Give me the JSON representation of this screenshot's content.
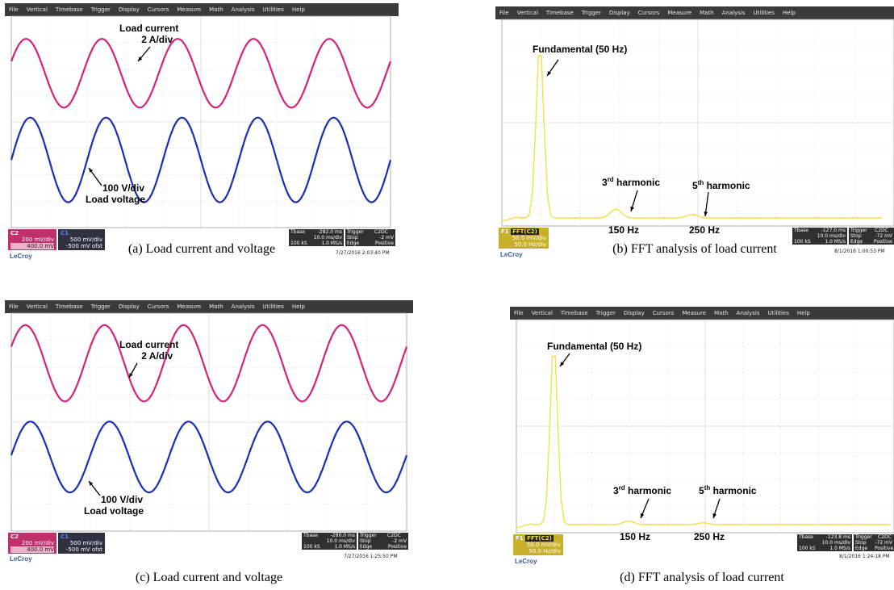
{
  "menu": [
    "File",
    "Vertical",
    "Timebase",
    "Trigger",
    "Display",
    "Cursors",
    "Measure",
    "Math",
    "Analysis",
    "Utilities",
    "Help"
  ],
  "brand": "LeCroy",
  "colors": {
    "current": "#d4237a",
    "voltage": "#1c2fb4",
    "fft": "#f2e04a",
    "menubar": "#3a3a3a",
    "grid": "#c8c8c8"
  },
  "panels": [
    {
      "caption": "(a) Load current and voltage",
      "annotations": {
        "current_label": "Load current",
        "current_scale": "2 A/div",
        "voltage_scale": "100 V/div",
        "voltage_label": "Load voltage"
      },
      "channels": [
        {
          "badge": "C2",
          "val1": "200 mV/div",
          "val2": "400.0 mV"
        },
        {
          "badge": "C1",
          "val1": "500 mV/div",
          "val2": "-500 mV ofst"
        }
      ],
      "info": {
        "tbase_label": "Tbase",
        "tbase": "-282.0 ms",
        "trigger_label": "Trigger",
        "trigger_ch": "C2DC",
        "div": "10.0 ms/div",
        "stop": "Stop",
        "trig_level": "-2 mV",
        "samples": "100 kS",
        "rate": "1.0 MS/s",
        "edge": "Edge",
        "slope": "Positive"
      },
      "timestamp": "7/27/2016 2:03:40 PM",
      "chart_data": {
        "type": "line",
        "series": [
          {
            "name": "Load current",
            "frequency_hz": 50,
            "cycles_shown": 5,
            "amplitude_div": 1.3
          },
          {
            "name": "Load voltage",
            "frequency_hz": 50,
            "cycles_shown": 5,
            "amplitude_div": 1.6
          }
        ],
        "x_div": "10.0 ms/div",
        "xlim_div": [
          0,
          10
        ]
      }
    },
    {
      "caption": "(b) FFT analysis of load current",
      "annotations": {
        "fundamental": "Fundamental  (50 Hz)",
        "h3_pre": "3",
        "h3_sup": "rd",
        "h3_post": " harmonic",
        "h5_pre": "5",
        "h5_sup": "th",
        "h5_post": " harmonic",
        "f150": "150 Hz",
        "f250": "250 Hz"
      },
      "channels": [
        {
          "badge": "F1",
          "tag": "FFT(C2)",
          "val1": "50.0 mV/div",
          "val2": "50.0 Hz/div"
        }
      ],
      "info": {
        "tbase_label": "Tbase",
        "tbase": "-127.0 ms",
        "trigger_label": "Trigger",
        "trigger_ch": "C2DC",
        "div": "10.0 ms/div",
        "stop": "Stop",
        "trig_level": "-72 mV",
        "samples": "100 kS",
        "rate": "1.0 MS/s",
        "edge": "Edge",
        "slope": "Positive"
      },
      "timestamp": "8/1/2016 1:00:53 PM",
      "chart_data": {
        "type": "line",
        "x_unit": "Hz",
        "x_div": "50.0 Hz/div",
        "xlim": [
          0,
          500
        ],
        "peaks": [
          {
            "x": 50,
            "rel": 1.0,
            "label": "Fundamental"
          },
          {
            "x": 150,
            "rel": 0.05,
            "label": "3rd harmonic"
          },
          {
            "x": 250,
            "rel": 0.02,
            "label": "5th harmonic"
          }
        ]
      }
    },
    {
      "caption": "(c) Load current and voltage",
      "annotations": {
        "current_label": "Load current",
        "current_scale": "2 A/div",
        "voltage_scale": "100 V/div",
        "voltage_label": "Load voltage"
      },
      "channels": [
        {
          "badge": "C2",
          "val1": "200 mV/div",
          "val2": "400.0 mV"
        },
        {
          "badge": "C1",
          "val1": "500 mV/div",
          "val2": "-500 mV ofst"
        }
      ],
      "info": {
        "tbase_label": "Tbase",
        "tbase": "-280.0 ms",
        "trigger_label": "Trigger",
        "trigger_ch": "C2DC",
        "div": "10.0 ms/div",
        "stop": "Stop",
        "trig_level": "-2 mV",
        "samples": "100 kS",
        "rate": "1.0 MS/s",
        "edge": "Edge",
        "slope": "Positive"
      },
      "timestamp": "7/27/2016 1:25:50 PM",
      "chart_data": {
        "type": "line",
        "series": [
          {
            "name": "Load current",
            "frequency_hz": 50,
            "cycles_shown": 5,
            "amplitude_div": 1.4
          },
          {
            "name": "Load voltage",
            "frequency_hz": 50,
            "cycles_shown": 5,
            "amplitude_div": 1.3
          }
        ],
        "x_div": "10.0 ms/div",
        "xlim_div": [
          0,
          10
        ]
      }
    },
    {
      "caption": "(d) FFT analysis of load current",
      "annotations": {
        "fundamental": "Fundamental  (50 Hz)",
        "h3_pre": "3",
        "h3_sup": "rd",
        "h3_post": " harmonic",
        "h5_pre": "5",
        "h5_sup": "th",
        "h5_post": " harmonic",
        "f150": "150 Hz",
        "f250": "250 Hz"
      },
      "channels": [
        {
          "badge": "F1",
          "tag": "FFT(C2)",
          "val1": "50.0 mV/div",
          "val2": "50.0 Hz/div"
        }
      ],
      "info": {
        "tbase_label": "Tbase",
        "tbase": "-123.8 ms",
        "trigger_label": "Trigger",
        "trigger_ch": "C2DC",
        "div": "10.0 ms/div",
        "stop": "Stop",
        "trig_level": "-72 mV",
        "samples": "100 kS",
        "rate": "1.0 MS/s",
        "edge": "Edge",
        "slope": "Positive"
      },
      "timestamp": "8/1/2016 1:24:18 PM",
      "chart_data": {
        "type": "line",
        "x_unit": "Hz",
        "x_div": "50.0 Hz/div",
        "xlim": [
          0,
          500
        ],
        "peaks": [
          {
            "x": 50,
            "rel": 1.0,
            "label": "Fundamental"
          },
          {
            "x": 150,
            "rel": 0.02,
            "label": "3rd harmonic"
          },
          {
            "x": 250,
            "rel": 0.01,
            "label": "5th harmonic"
          }
        ]
      }
    }
  ]
}
